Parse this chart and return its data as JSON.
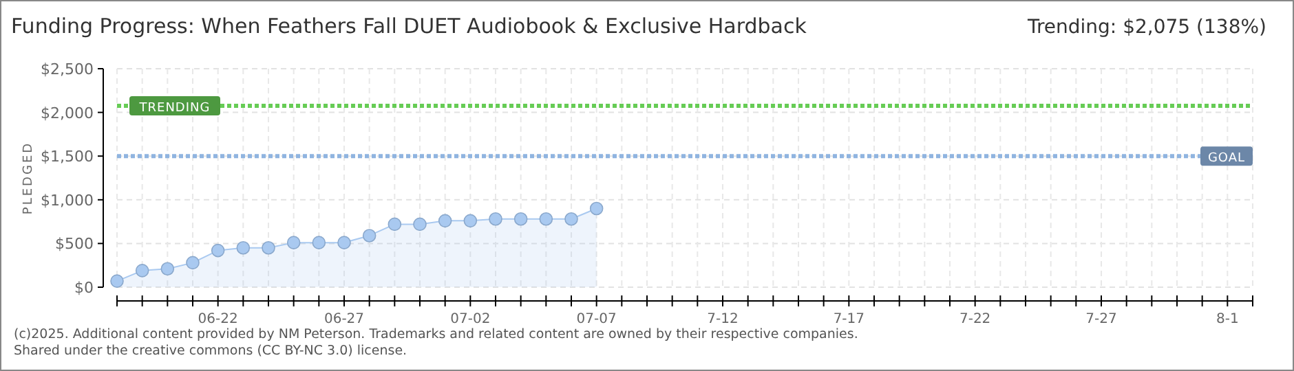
{
  "chart_data": {
    "type": "area",
    "title": "Funding Progress: When Feathers Fall DUET Audiobook & Exclusive Hardback",
    "subtitle": "Trending: $2,075 (138%)",
    "ylabel": "PLEDGED",
    "x": [
      "2025-06-18",
      "2025-06-19",
      "2025-06-20",
      "2025-06-21",
      "2025-06-22",
      "2025-06-23",
      "2025-06-24",
      "2025-06-25",
      "2025-06-26",
      "2025-06-27",
      "2025-06-28",
      "2025-06-29",
      "2025-06-30",
      "2025-07-01",
      "2025-07-02",
      "2025-07-03",
      "2025-07-04",
      "2025-07-05",
      "2025-07-06",
      "2025-07-07"
    ],
    "series": [
      {
        "color": "#a9c9f0",
        "values": [
          70,
          190,
          210,
          280,
          420,
          450,
          450,
          510,
          510,
          510,
          590,
          720,
          720,
          760,
          760,
          780,
          780,
          780,
          780,
          900
        ]
      }
    ],
    "xlim": [
      "2025-06-18",
      "2025-08-02"
    ],
    "xticks": [
      {
        "value": "2025-06-18",
        "label": null
      },
      {
        "value": "2025-06-19",
        "label": null
      },
      {
        "value": "2025-06-20",
        "label": null
      },
      {
        "value": "2025-06-21",
        "label": null
      },
      {
        "value": "2025-06-22",
        "label": "06-22"
      },
      {
        "value": "2025-06-23",
        "label": null
      },
      {
        "value": "2025-06-24",
        "label": null
      },
      {
        "value": "2025-06-25",
        "label": null
      },
      {
        "value": "2025-06-26",
        "label": null
      },
      {
        "value": "2025-06-27",
        "label": "06-27"
      },
      {
        "value": "2025-06-28",
        "label": null
      },
      {
        "value": "2025-06-29",
        "label": null
      },
      {
        "value": "2025-06-30",
        "label": null
      },
      {
        "value": "2025-07-01",
        "label": null
      },
      {
        "value": "2025-07-02",
        "label": "07-02"
      },
      {
        "value": "2025-07-03",
        "label": null
      },
      {
        "value": "2025-07-04",
        "label": null
      },
      {
        "value": "2025-07-05",
        "label": null
      },
      {
        "value": "2025-07-06",
        "label": null
      },
      {
        "value": "2025-07-07",
        "label": "07-07"
      },
      {
        "value": "2025-07-08",
        "label": null
      },
      {
        "value": "2025-07-09",
        "label": null
      },
      {
        "value": "2025-07-10",
        "label": null
      },
      {
        "value": "2025-07-11",
        "label": null
      },
      {
        "value": "2025-07-12",
        "label": "7-12"
      },
      {
        "value": "2025-07-13",
        "label": null
      },
      {
        "value": "2025-07-14",
        "label": null
      },
      {
        "value": "2025-07-15",
        "label": null
      },
      {
        "value": "2025-07-16",
        "label": null
      },
      {
        "value": "2025-07-17",
        "label": "7-17"
      },
      {
        "value": "2025-07-18",
        "label": null
      },
      {
        "value": "2025-07-19",
        "label": null
      },
      {
        "value": "2025-07-20",
        "label": null
      },
      {
        "value": "2025-07-21",
        "label": null
      },
      {
        "value": "2025-07-22",
        "label": "7-22"
      },
      {
        "value": "2025-07-23",
        "label": null
      },
      {
        "value": "2025-07-24",
        "label": null
      },
      {
        "value": "2025-07-25",
        "label": null
      },
      {
        "value": "2025-07-26",
        "label": null
      },
      {
        "value": "2025-07-27",
        "label": "7-27"
      },
      {
        "value": "2025-07-28",
        "label": null
      },
      {
        "value": "2025-07-29",
        "label": null
      },
      {
        "value": "2025-07-30",
        "label": null
      },
      {
        "value": "2025-07-31",
        "label": null
      },
      {
        "value": "2025-08-01",
        "label": "8-1"
      },
      {
        "value": "2025-08-02",
        "label": null
      }
    ],
    "ylim": [
      0,
      2500
    ],
    "yticks": [
      {
        "value": 0,
        "label": "$0"
      },
      {
        "value": 500,
        "label": "$500"
      },
      {
        "value": 1000,
        "label": "$1,000"
      },
      {
        "value": 1500,
        "label": "$1,500"
      },
      {
        "value": 2000,
        "label": "$2,000"
      },
      {
        "value": 2500,
        "label": "$2,500"
      }
    ],
    "ref_lines": [
      {
        "axis": "y",
        "value": 2075,
        "label": "TRENDING",
        "color": "#66cc55",
        "line_style": "dotted"
      },
      {
        "axis": "y",
        "value": 1500,
        "label": "GOAL",
        "color": "#8fb4e0",
        "line_style": "dotted"
      }
    ],
    "grid": true,
    "marker": "circle",
    "annotations": [
      "(c)2025. Additional content provided by NM Peterson. Trademarks and related content are owned by their respective companies.",
      "Shared under the creative commons (CC BY-NC 3.0) license."
    ]
  }
}
